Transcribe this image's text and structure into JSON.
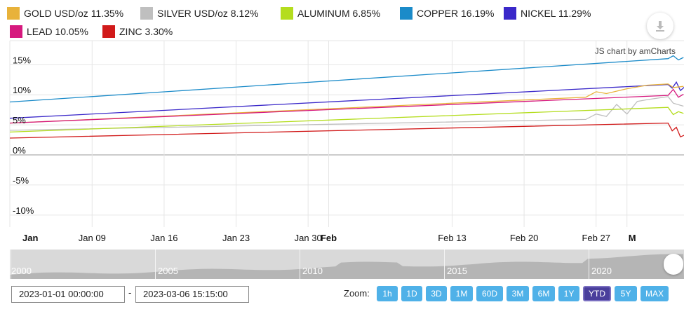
{
  "legend": [
    {
      "label": "GOLD USD/oz 11.35%",
      "color": "#e8b23a"
    },
    {
      "label": "SILVER USD/oz 8.12%",
      "color": "#bfbfbf"
    },
    {
      "label": "ALUMINUM 6.85%",
      "color": "#b4dd1e"
    },
    {
      "label": "COPPER 16.19%",
      "color": "#1b8bc9"
    },
    {
      "label": "NICKEL 11.29%",
      "color": "#3a28c9"
    },
    {
      "label": "LEAD 10.05%",
      "color": "#d6197e"
    },
    {
      "label": "ZINC 3.30%",
      "color": "#d11a1a"
    }
  ],
  "credit": "JS chart by amCharts",
  "download_icon": "download-icon",
  "chart_data": {
    "type": "line",
    "ylim": [
      -12,
      19
    ],
    "y_ticks": [
      15,
      10,
      5,
      0,
      -5,
      -10
    ],
    "y_tick_labels": [
      "15%",
      "10%",
      "5%",
      "0%",
      "-5%",
      "-10%"
    ],
    "x_tick_labels": [
      "Jan",
      "Jan 09",
      "Jan 16",
      "Jan 23",
      "Jan 30",
      "Feb",
      "Feb 13",
      "Feb 20",
      "Feb 27",
      "M"
    ],
    "x_ticks_day": [
      0,
      8,
      15,
      22,
      29,
      31,
      43,
      50,
      57,
      60
    ],
    "x_range_days": [
      0,
      65
    ],
    "grid": true,
    "series": [
      {
        "name": "COPPER 16.19%",
        "color": "#1b8bc9",
        "points": [
          [
            0,
            8.8
          ],
          [
            64,
            16.0
          ],
          [
            64.5,
            16.5
          ],
          [
            65,
            15.8
          ],
          [
            65.5,
            16.2
          ]
        ]
      },
      {
        "name": "NICKEL 11.29%",
        "color": "#3a28c9",
        "points": [
          [
            0,
            6.1
          ],
          [
            64,
            11.7
          ],
          [
            64.4,
            11.1
          ],
          [
            64.8,
            12.1
          ],
          [
            65.2,
            10.7
          ],
          [
            65.6,
            11.3
          ]
        ]
      },
      {
        "name": "GOLD USD/oz 11.35%",
        "color": "#e8b23a",
        "points": [
          [
            0,
            5.3
          ],
          [
            56,
            9.6
          ],
          [
            57,
            10.5
          ],
          [
            58,
            10.2
          ],
          [
            60,
            11.0
          ],
          [
            62,
            11.6
          ],
          [
            64,
            11.8
          ],
          [
            64.5,
            11.2
          ],
          [
            65.5,
            11.4
          ]
        ]
      },
      {
        "name": "LEAD 10.05%",
        "color": "#d6197e",
        "points": [
          [
            0,
            5.3
          ],
          [
            64,
            9.9
          ],
          [
            64.5,
            10.9
          ],
          [
            65,
            9.6
          ],
          [
            65.5,
            10.1
          ]
        ]
      },
      {
        "name": "SILVER USD/oz 8.12%",
        "color": "#bfbfbf",
        "points": [
          [
            0,
            4.1
          ],
          [
            56,
            5.9
          ],
          [
            57,
            6.8
          ],
          [
            58,
            6.4
          ],
          [
            59,
            8.4
          ],
          [
            60,
            6.8
          ],
          [
            61,
            8.9
          ],
          [
            62,
            9.2
          ],
          [
            64,
            9.7
          ],
          [
            64.5,
            8.6
          ],
          [
            65.5,
            8.1
          ]
        ]
      },
      {
        "name": "ALUMINUM 6.85%",
        "color": "#b4dd1e",
        "points": [
          [
            0,
            3.8
          ],
          [
            64,
            7.9
          ],
          [
            64.5,
            6.7
          ],
          [
            65,
            7.2
          ],
          [
            65.5,
            6.9
          ]
        ]
      },
      {
        "name": "ZINC 3.30%",
        "color": "#d11a1a",
        "points": [
          [
            0,
            2.8
          ],
          [
            64,
            5.3
          ],
          [
            64.4,
            4.0
          ],
          [
            64.8,
            4.6
          ],
          [
            65.2,
            3.0
          ],
          [
            65.6,
            3.3
          ]
        ]
      }
    ]
  },
  "scroller": {
    "years": [
      "2000",
      "2005",
      "2010",
      "2015",
      "2020"
    ]
  },
  "date_range": {
    "from": "2023-01-01 00:00:00",
    "separator": "-",
    "to": "2023-03-06 15:15:00"
  },
  "zoom": {
    "label": "Zoom:",
    "buttons": [
      "1h",
      "1D",
      "3D",
      "1M",
      "60D",
      "3M",
      "6M",
      "1Y",
      "YTD",
      "5Y",
      "MAX"
    ],
    "active": "YTD"
  }
}
